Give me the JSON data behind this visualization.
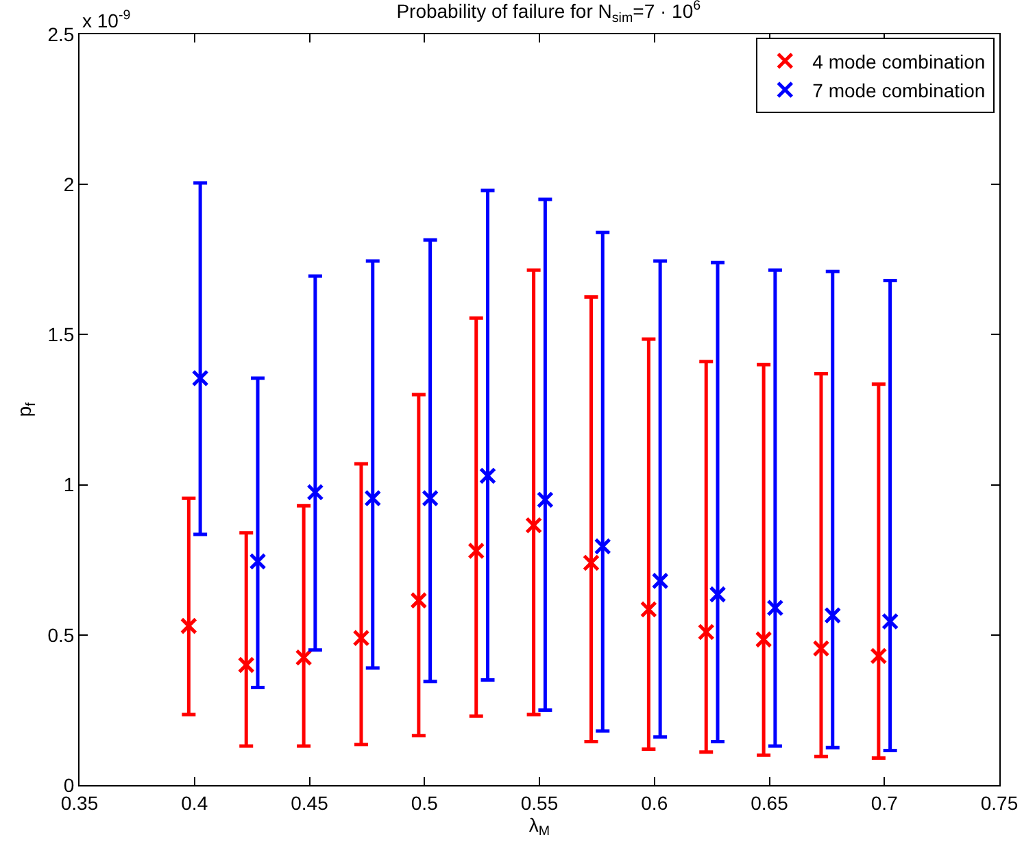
{
  "chart_data": {
    "type": "scatter",
    "title": "Probability of failure for N$_{sim}$=7 · 10$^{6}$",
    "xlabel": "λ$_{M}$",
    "ylabel": "p$_{f}$",
    "annotations": [
      "x 10$^{-9}$"
    ],
    "xlim": [
      0.35,
      0.75
    ],
    "xticks": [
      0.35,
      0.4,
      0.45,
      0.5,
      0.55,
      0.6,
      0.65,
      0.7,
      0.75
    ],
    "ylim": [
      0,
      2.5
    ],
    "yticks": [
      0,
      0.5,
      1,
      1.5,
      2,
      2.5
    ],
    "legend": "top right",
    "marker": "cross",
    "series": [
      {
        "name": "4 mode combination",
        "color": "#ff0000",
        "x": [
          0.3975,
          0.4225,
          0.4475,
          0.4725,
          0.4975,
          0.5225,
          0.5475,
          0.5725,
          0.5975,
          0.6225,
          0.6475,
          0.6725,
          0.6975
        ],
        "values": [
          0.53,
          0.4,
          0.425,
          0.49,
          0.615,
          0.78,
          0.865,
          0.74,
          0.585,
          0.51,
          0.485,
          0.455,
          0.43
        ],
        "errors": [
          [
            0.235,
            0.955
          ],
          [
            0.13,
            0.84
          ],
          [
            0.13,
            0.93
          ],
          [
            0.135,
            1.07
          ],
          [
            0.165,
            1.3
          ],
          [
            0.23,
            1.555
          ],
          [
            0.235,
            1.715
          ],
          [
            0.145,
            1.625
          ],
          [
            0.12,
            1.485
          ],
          [
            0.11,
            1.41
          ],
          [
            0.1,
            1.4
          ],
          [
            0.095,
            1.37
          ],
          [
            0.09,
            1.335
          ]
        ]
      },
      {
        "name": "7 mode combination",
        "color": "#0000ff",
        "x": [
          0.4025,
          0.4275,
          0.4525,
          0.4775,
          0.5025,
          0.5275,
          0.5525,
          0.5775,
          0.6025,
          0.6275,
          0.6525,
          0.6775,
          0.7025
        ],
        "values": [
          1.355,
          0.745,
          0.975,
          0.955,
          0.955,
          1.03,
          0.95,
          0.795,
          0.68,
          0.635,
          0.59,
          0.565,
          0.545
        ],
        "errors": [
          [
            0.835,
            2.005
          ],
          [
            0.325,
            1.355
          ],
          [
            0.45,
            1.695
          ],
          [
            0.39,
            1.745
          ],
          [
            0.345,
            1.815
          ],
          [
            0.35,
            1.98
          ],
          [
            0.25,
            1.95
          ],
          [
            0.18,
            1.84
          ],
          [
            0.16,
            1.745
          ],
          [
            0.145,
            1.74
          ],
          [
            0.13,
            1.715
          ],
          [
            0.125,
            1.71
          ],
          [
            0.115,
            1.68
          ]
        ]
      }
    ]
  }
}
